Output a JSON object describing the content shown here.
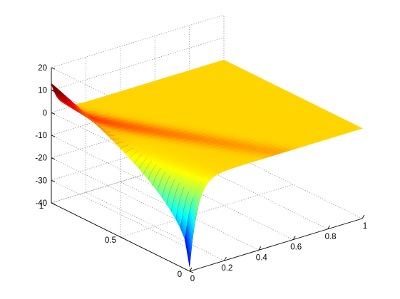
{
  "chart_data": {
    "type": "surface",
    "title": "",
    "xlabel": "",
    "ylabel": "",
    "zlabel": "",
    "grid": true,
    "colormap": "jet",
    "xlim": [
      0,
      1
    ],
    "ylim": [
      0,
      1
    ],
    "zlim": [
      -40,
      20
    ],
    "x_ticks": [
      "0",
      "0.2",
      "0.4",
      "0.6",
      "0.8",
      "1"
    ],
    "x_tick_values": [
      0,
      0.2,
      0.4,
      0.6,
      0.8,
      1
    ],
    "y_ticks": [
      "0",
      "0.5",
      "1"
    ],
    "y_tick_values": [
      0,
      0.5,
      1
    ],
    "z_ticks": [
      "-40",
      "-30",
      "-20",
      "-10",
      "0",
      "10",
      "20"
    ],
    "z_tick_values": [
      -40,
      -30,
      -20,
      -10,
      0,
      10,
      20
    ],
    "surface_description": "Flat surface at z≈0 over most of the domain; near x=0 the edge curls between about +13 and -38 along y, with a red ridge running diagonally toward x≈0.3, y≈0.3",
    "plane_level": 0,
    "edge_max": 13,
    "edge_min": -38
  }
}
